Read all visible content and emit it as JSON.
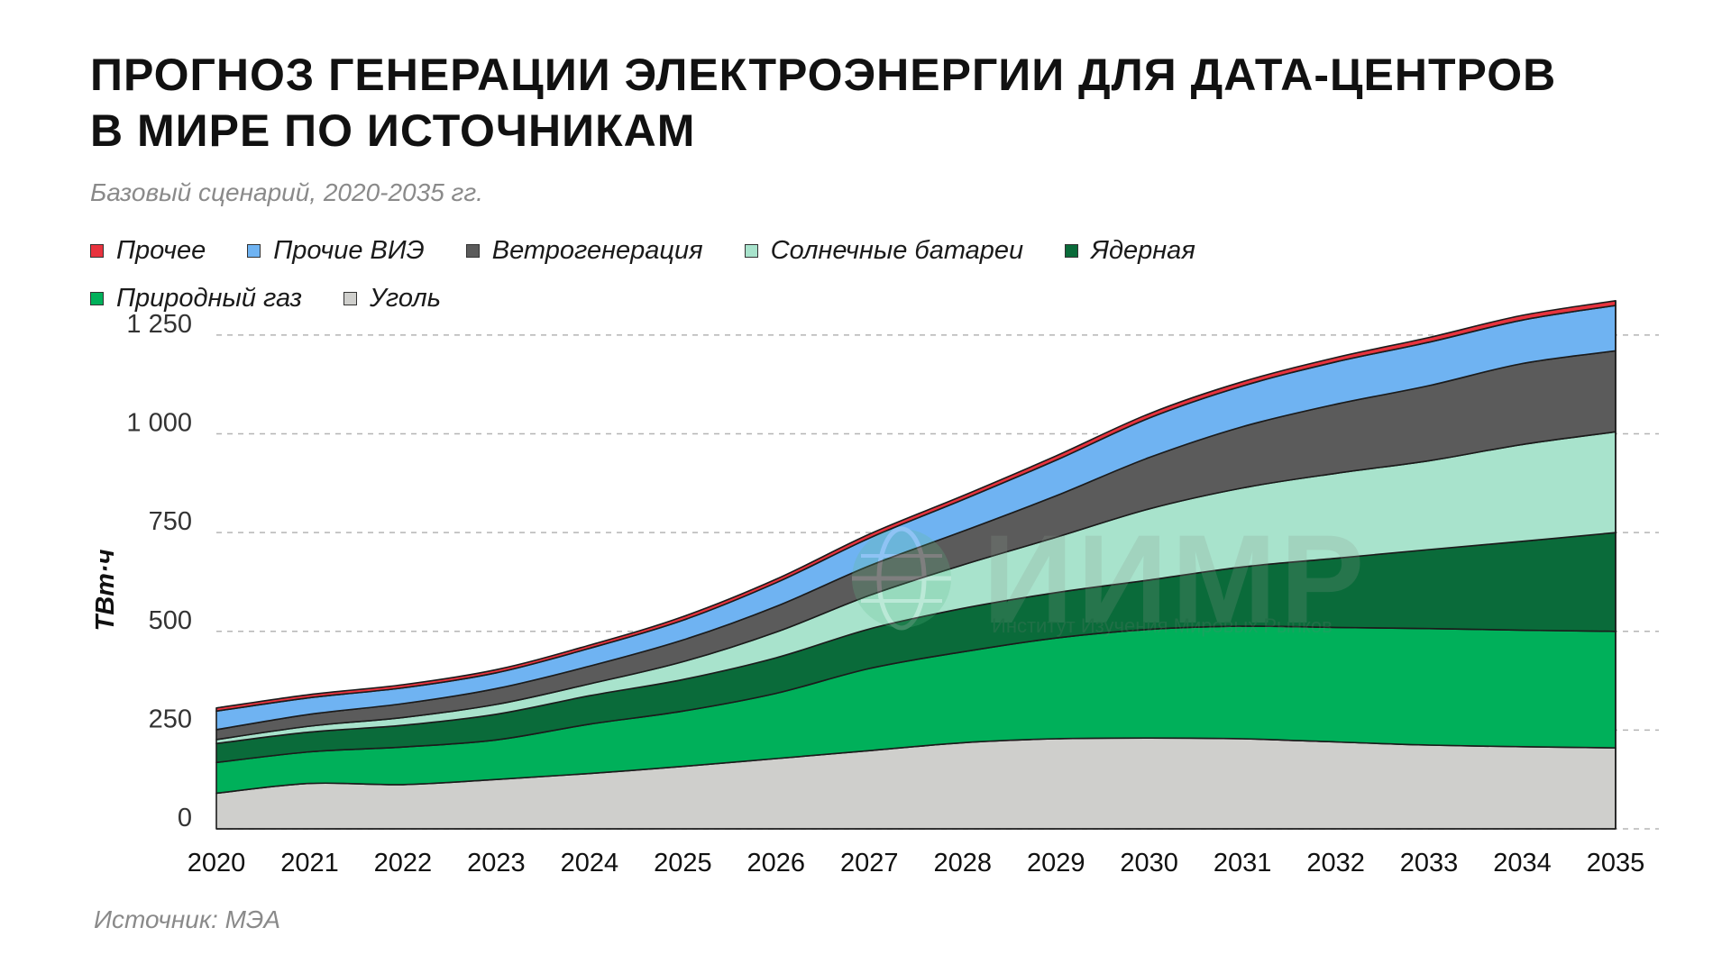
{
  "title_lines": [
    "Прогноз генерации электроэнергии для дата-центров",
    "в мире по источникам"
  ],
  "subtitle": "Базовый сценарий, 2020-2035 гг.",
  "source": "Источник: МЭА",
  "watermark": {
    "text": "ИИМР",
    "subtext": "Институт Изучения Мировых Рынков",
    "icon": "globe-logo-icon"
  },
  "chart_data": {
    "type": "area",
    "stacked": true,
    "title": "Прогноз генерации электроэнергии для дата-центров в мире по источникам",
    "subtitle": "Базовый сценарий, 2020-2035 гг.",
    "xlabel": "",
    "ylabel": "ТВт·ч",
    "ylim": [
      0,
      1250
    ],
    "yticks": [
      0,
      250,
      500,
      750,
      1000,
      1250
    ],
    "ytick_labels": [
      "0",
      "250",
      "500",
      "750",
      "1 000",
      "1 250"
    ],
    "grid": "horizontal dashed",
    "legend_position": "top-left",
    "x": [
      "2020",
      "2021",
      "2022",
      "2023",
      "2024",
      "2025",
      "2026",
      "2027",
      "2028",
      "2029",
      "2030",
      "2031",
      "2032",
      "2033",
      "2034",
      "2035"
    ],
    "series": [
      {
        "name": "Уголь",
        "color": "#cfcfcc",
        "values": [
          90,
          115,
          112,
          125,
          140,
          158,
          178,
          198,
          218,
          228,
          230,
          228,
          220,
          212,
          208,
          205
        ]
      },
      {
        "name": "Природный газ",
        "color": "#00b05a",
        "values": [
          78,
          80,
          95,
          100,
          125,
          140,
          165,
          208,
          230,
          255,
          275,
          285,
          290,
          295,
          295,
          295
        ]
      },
      {
        "name": "Ядерная",
        "color": "#0a6b3a",
        "values": [
          48,
          50,
          55,
          65,
          72,
          80,
          90,
          100,
          110,
          115,
          125,
          150,
          175,
          200,
          225,
          250
        ]
      },
      {
        "name": "Солнечные батареи",
        "color": "#a8e3cc",
        "values": [
          10,
          15,
          20,
          25,
          30,
          45,
          65,
          85,
          110,
          140,
          180,
          200,
          215,
          225,
          245,
          255
        ]
      },
      {
        "name": "Ветрогенерация",
        "color": "#5b5b5b",
        "values": [
          25,
          30,
          35,
          40,
          45,
          55,
          65,
          75,
          85,
          105,
          130,
          155,
          175,
          190,
          205,
          205
        ]
      },
      {
        "name": "Прочие ВИЭ",
        "color": "#6fb3f2",
        "values": [
          47,
          42,
          40,
          40,
          45,
          50,
          60,
          70,
          80,
          90,
          100,
          103,
          107,
          110,
          110,
          115
        ]
      },
      {
        "name": "Прочее",
        "color": "#e8333e",
        "values": [
          8,
          8,
          8,
          8,
          8,
          9,
          9,
          10,
          10,
          11,
          11,
          11,
          11,
          12,
          12,
          12
        ]
      }
    ],
    "legend_order": [
      "Прочее",
      "Прочие ВИЭ",
      "Ветрогенерация",
      "Солнечные батареи",
      "Ядерная",
      "Природный газ",
      "Уголь"
    ]
  }
}
